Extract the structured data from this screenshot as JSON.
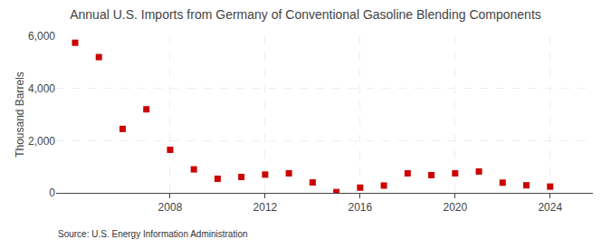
{
  "chart_data": {
    "type": "scatter",
    "title": "Annual U.S. Imports from Germany of Conventional Gasoline Blending Components",
    "y_label": "Thousand Barrels",
    "annotations": [
      "Source: U.S. Energy Information Administration"
    ],
    "x": [
      2004,
      2005,
      2006,
      2007,
      2008,
      2009,
      2010,
      2011,
      2012,
      2013,
      2014,
      2015,
      2016,
      2017,
      2018,
      2019,
      2020,
      2021,
      2022,
      2023,
      2024
    ],
    "values": [
      5750,
      5200,
      2450,
      3200,
      1650,
      900,
      540,
      610,
      700,
      750,
      400,
      30,
      200,
      280,
      750,
      680,
      750,
      820,
      390,
      290,
      240
    ],
    "color": "#cc0000",
    "marker": "square",
    "xlim": [
      2003.2,
      2025.8
    ],
    "xticks": [
      2008,
      2012,
      2016,
      2020,
      2024
    ],
    "ylim": [
      0,
      6000
    ],
    "yticks": [
      0,
      {
        "value": 2000,
        "label": "2,000"
      },
      {
        "value": 4000,
        "label": "4,000"
      },
      {
        "value": 6000,
        "label": "6,000"
      }
    ],
    "grid": true
  }
}
